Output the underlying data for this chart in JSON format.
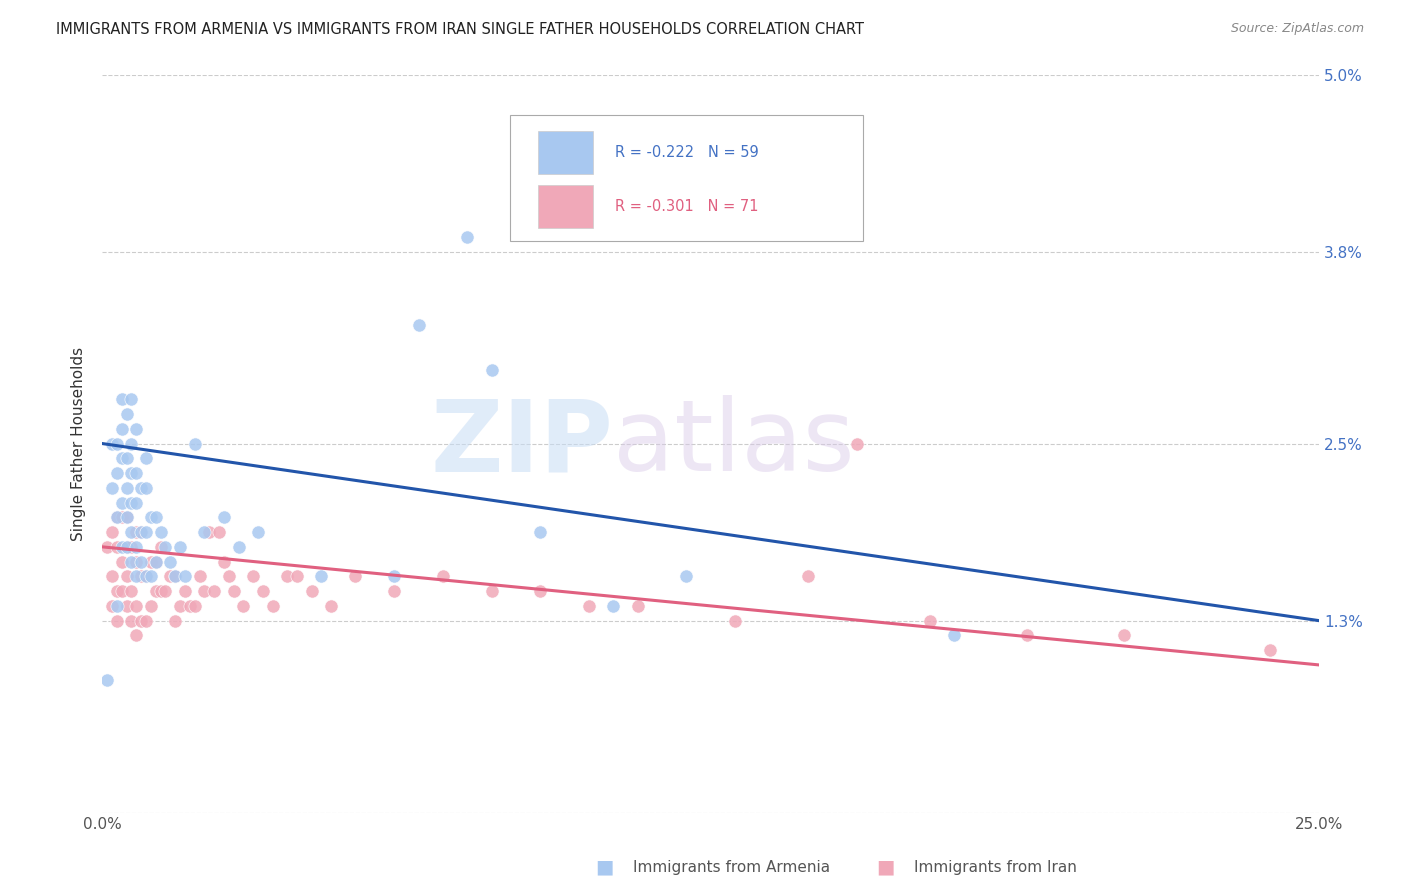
{
  "title": "IMMIGRANTS FROM ARMENIA VS IMMIGRANTS FROM IRAN SINGLE FATHER HOUSEHOLDS CORRELATION CHART",
  "source": "Source: ZipAtlas.com",
  "ylabel": "Single Father Households",
  "x_min": 0.0,
  "x_max": 0.25,
  "y_min": 0.0,
  "y_max": 0.05,
  "x_ticks": [
    0.0,
    0.05,
    0.1,
    0.15,
    0.2,
    0.25
  ],
  "x_tick_labels": [
    "0.0%",
    "",
    "",
    "",
    "",
    "25.0%"
  ],
  "y_ticks": [
    0.0,
    0.013,
    0.025,
    0.038,
    0.05
  ],
  "y_tick_labels": [
    "",
    "1.3%",
    "2.5%",
    "3.8%",
    "5.0%"
  ],
  "grid_color": "#cccccc",
  "color_armenia": "#a8c8f0",
  "color_iran": "#f0a8b8",
  "line_color_armenia": "#2255aa",
  "line_color_iran": "#e06080",
  "watermark_zip": "ZIP",
  "watermark_atlas": "atlas",
  "armenia_scatter_x": [
    0.001,
    0.002,
    0.002,
    0.003,
    0.003,
    0.003,
    0.003,
    0.004,
    0.004,
    0.004,
    0.004,
    0.004,
    0.005,
    0.005,
    0.005,
    0.005,
    0.005,
    0.006,
    0.006,
    0.006,
    0.006,
    0.006,
    0.006,
    0.007,
    0.007,
    0.007,
    0.007,
    0.007,
    0.008,
    0.008,
    0.008,
    0.009,
    0.009,
    0.009,
    0.009,
    0.01,
    0.01,
    0.011,
    0.011,
    0.012,
    0.013,
    0.014,
    0.015,
    0.016,
    0.017,
    0.019,
    0.021,
    0.025,
    0.028,
    0.032,
    0.045,
    0.06,
    0.065,
    0.075,
    0.08,
    0.09,
    0.105,
    0.12,
    0.175
  ],
  "armenia_scatter_y": [
    0.009,
    0.022,
    0.025,
    0.014,
    0.02,
    0.023,
    0.025,
    0.018,
    0.021,
    0.024,
    0.026,
    0.028,
    0.018,
    0.02,
    0.022,
    0.024,
    0.027,
    0.017,
    0.019,
    0.021,
    0.023,
    0.025,
    0.028,
    0.016,
    0.018,
    0.021,
    0.023,
    0.026,
    0.017,
    0.019,
    0.022,
    0.016,
    0.019,
    0.022,
    0.024,
    0.016,
    0.02,
    0.017,
    0.02,
    0.019,
    0.018,
    0.017,
    0.016,
    0.018,
    0.016,
    0.025,
    0.019,
    0.02,
    0.018,
    0.019,
    0.016,
    0.016,
    0.033,
    0.039,
    0.03,
    0.019,
    0.014,
    0.016,
    0.012
  ],
  "iran_scatter_x": [
    0.001,
    0.002,
    0.002,
    0.002,
    0.003,
    0.003,
    0.003,
    0.003,
    0.004,
    0.004,
    0.004,
    0.005,
    0.005,
    0.005,
    0.005,
    0.006,
    0.006,
    0.006,
    0.007,
    0.007,
    0.007,
    0.007,
    0.008,
    0.008,
    0.008,
    0.009,
    0.009,
    0.01,
    0.01,
    0.011,
    0.011,
    0.012,
    0.012,
    0.013,
    0.014,
    0.015,
    0.015,
    0.016,
    0.017,
    0.018,
    0.019,
    0.02,
    0.021,
    0.022,
    0.023,
    0.024,
    0.025,
    0.026,
    0.027,
    0.029,
    0.031,
    0.033,
    0.035,
    0.038,
    0.04,
    0.043,
    0.047,
    0.052,
    0.06,
    0.07,
    0.08,
    0.09,
    0.1,
    0.11,
    0.13,
    0.145,
    0.155,
    0.17,
    0.19,
    0.21,
    0.24
  ],
  "iran_scatter_y": [
    0.018,
    0.014,
    0.016,
    0.019,
    0.013,
    0.015,
    0.018,
    0.02,
    0.015,
    0.017,
    0.02,
    0.014,
    0.016,
    0.018,
    0.02,
    0.013,
    0.015,
    0.018,
    0.012,
    0.014,
    0.017,
    0.019,
    0.013,
    0.016,
    0.019,
    0.013,
    0.016,
    0.014,
    0.017,
    0.015,
    0.017,
    0.015,
    0.018,
    0.015,
    0.016,
    0.013,
    0.016,
    0.014,
    0.015,
    0.014,
    0.014,
    0.016,
    0.015,
    0.019,
    0.015,
    0.019,
    0.017,
    0.016,
    0.015,
    0.014,
    0.016,
    0.015,
    0.014,
    0.016,
    0.016,
    0.015,
    0.014,
    0.016,
    0.015,
    0.016,
    0.015,
    0.015,
    0.014,
    0.014,
    0.013,
    0.016,
    0.025,
    0.013,
    0.012,
    0.012,
    0.011
  ],
  "armenia_line_x0": 0.0,
  "armenia_line_x1": 0.25,
  "armenia_line_y0": 0.025,
  "armenia_line_y1": 0.013,
  "iran_line_x0": 0.0,
  "iran_line_x1": 0.25,
  "iran_line_y0": 0.018,
  "iran_line_y1": 0.01
}
